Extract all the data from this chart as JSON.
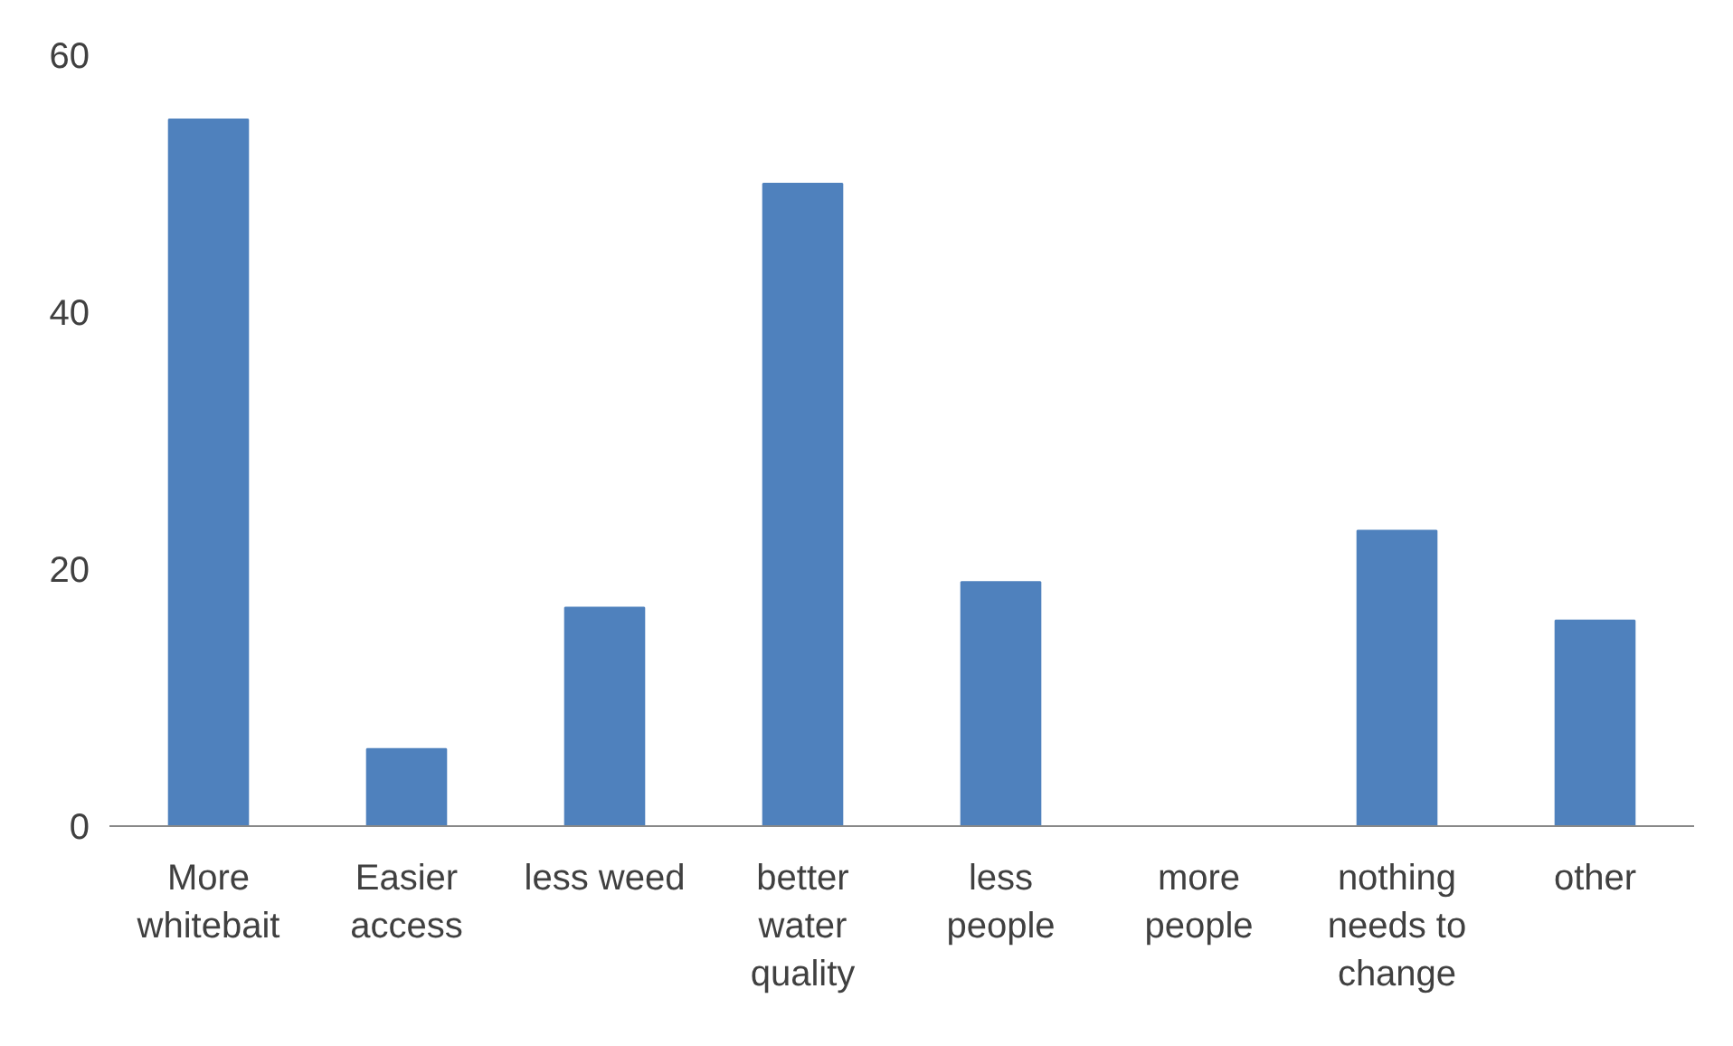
{
  "chart_data": {
    "type": "bar",
    "categories": [
      "More whitebait",
      "Easier access",
      "less weed",
      "better water quality",
      "less people",
      "more people",
      "nothing needs to change",
      "other"
    ],
    "values": [
      55,
      6,
      17,
      50,
      19,
      0,
      23,
      16
    ],
    "color": "#4f81bd",
    "ylim": [
      0,
      60
    ],
    "yticks": [
      0,
      20,
      40,
      60
    ],
    "grid": false
  }
}
